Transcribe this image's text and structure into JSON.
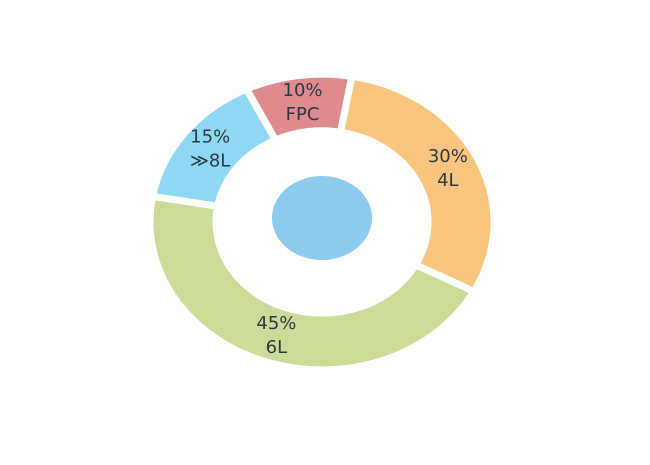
{
  "chart_data": {
    "type": "donut",
    "categories": [
      "4L",
      "6L",
      "≫8L",
      "FPC"
    ],
    "values": [
      30,
      45,
      15,
      10
    ],
    "value_labels": [
      "30%",
      "45%",
      "15%",
      "10%"
    ],
    "colors": [
      "#f8c57e",
      "#cbdb98",
      "#8fd8f3",
      "#de8a8e"
    ]
  }
}
